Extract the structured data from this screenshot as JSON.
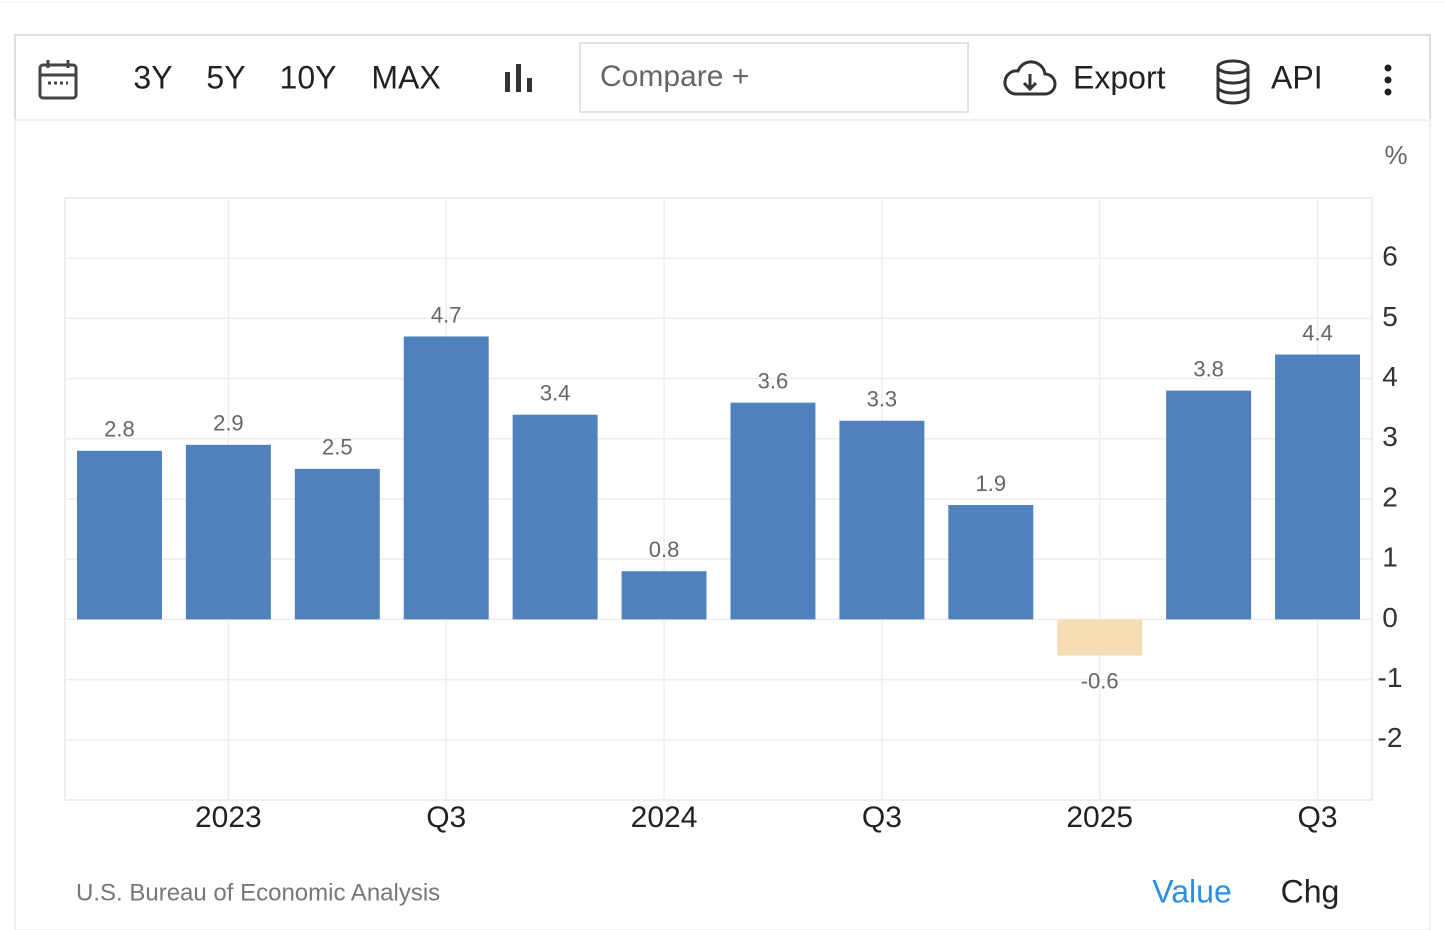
{
  "toolbar": {
    "ranges": [
      "3Y",
      "5Y",
      "10Y",
      "MAX"
    ],
    "compare": "Compare +",
    "export": "Export",
    "api": "API"
  },
  "chart_data": {
    "type": "bar",
    "unit": "%",
    "categories": [
      null,
      "2023",
      null,
      "Q3",
      null,
      "2024",
      null,
      "Q3",
      null,
      "2025",
      null,
      "Q3"
    ],
    "values": [
      2.8,
      2.9,
      2.5,
      4.7,
      3.4,
      0.8,
      3.6,
      3.3,
      1.9,
      -0.6,
      3.8,
      4.4
    ],
    "color": "#4f81bd",
    "negative_color": "#f5deb3",
    "ylim": [
      -3,
      7
    ],
    "yticks": [
      -2,
      -1,
      0,
      1,
      2,
      3,
      4,
      5,
      6
    ],
    "grid": true
  },
  "footer": {
    "source": "U.S. Bureau of Economic Analysis",
    "toggles": [
      "Value",
      "Chg"
    ]
  }
}
